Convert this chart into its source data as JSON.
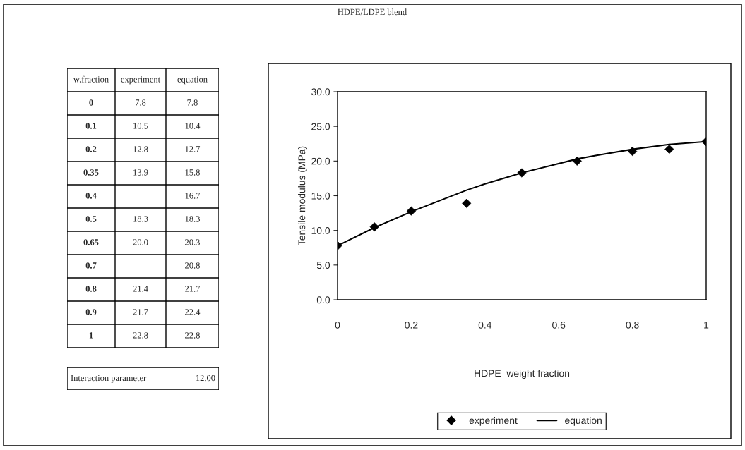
{
  "chart_data": [
    {
      "type": "other",
      "title": "HDPE/LDPE blend",
      "categories": [
        "0",
        "0.1",
        "0.2",
        "0.35",
        "0.4",
        "0.5",
        "0.65",
        "0.7",
        "0.8",
        "0.9",
        "1"
      ],
      "series": [
        {
          "name": "experiment",
          "values": [
            7.8,
            10.5,
            12.8,
            13.9,
            null,
            18.3,
            20.0,
            null,
            21.4,
            21.7,
            22.8
          ],
          "value_labels": [
            "7.8",
            "10.5",
            "12.8",
            "13.9",
            null,
            "18.3",
            "20.0",
            null,
            "21.4",
            "21.7",
            "22.8"
          ]
        },
        {
          "name": "equation",
          "values": [
            7.8,
            10.4,
            12.7,
            15.8,
            16.7,
            18.3,
            20.3,
            20.8,
            21.7,
            22.4,
            22.8
          ]
        }
      ],
      "data_labels": true,
      "annotations": [
        "w.fraction",
        "Interaction parameter",
        "12.00"
      ]
    },
    {
      "type": "scatter",
      "xlabel": "HDPE  weight fraction",
      "ylabel": "Tensile modulus (MPa)",
      "x": [
        0,
        0.1,
        0.2,
        0.35,
        0.4,
        0.5,
        0.65,
        0.7,
        0.8,
        0.9,
        1
      ],
      "series": [
        {
          "name": "experiment",
          "type": "scatter",
          "marker": "diamond",
          "color": "#000000",
          "values": [
            7.8,
            10.5,
            12.8,
            13.9,
            null,
            18.3,
            20.0,
            null,
            21.4,
            21.7,
            22.8
          ]
        },
        {
          "name": "equation",
          "type": "line",
          "marker": "none",
          "line_style": "solid",
          "color": "#000000",
          "values": [
            7.8,
            10.4,
            12.7,
            15.8,
            16.7,
            18.3,
            20.3,
            20.8,
            21.7,
            22.4,
            22.8
          ]
        }
      ],
      "xlim": [
        0,
        1
      ],
      "xticks": [
        0,
        0.2,
        0.4,
        0.6,
        0.8,
        1
      ],
      "ylim": [
        0,
        30
      ],
      "yticks": [
        {
          "value": 0,
          "label": "0.0"
        },
        {
          "value": 5,
          "label": "5.0"
        },
        {
          "value": 10,
          "label": "10.0"
        },
        {
          "value": 15,
          "label": "15.0"
        },
        {
          "value": 20,
          "label": "20.0"
        },
        {
          "value": 25,
          "label": "25.0"
        },
        {
          "value": 30,
          "label": "30.0"
        }
      ],
      "grid": false,
      "legend": "bottom"
    }
  ]
}
